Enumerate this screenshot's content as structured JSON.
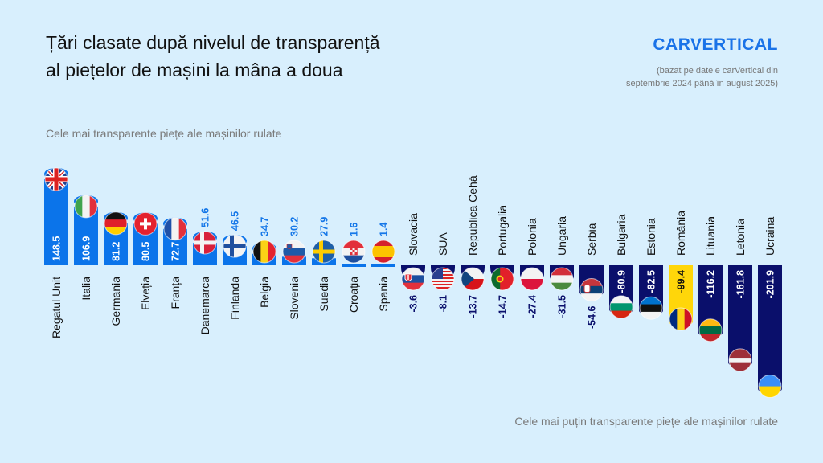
{
  "header": {
    "title_line1": "Țări clasate după nivelul de transparență",
    "title_line2": "al piețelor de mașini la mâna a doua",
    "logo": "carVertical",
    "note_line1": "(bazat pe datele carVertical din",
    "note_line2": "septembrie 2024 până în august 2025)"
  },
  "chart_data": {
    "type": "bar",
    "title": "Țări clasate după nivelul de transparență al piețelor de mașini la mâna a doua",
    "top_annotation": "Cele mai transparente piețe ale mașinilor rulate",
    "bottom_annotation": "Cele mai puțin transparente piețe ale mașinilor rulate",
    "categories": [
      "Regatul Unit",
      "Italia",
      "Germania",
      "Elveția",
      "Franța",
      "Danemarca",
      "Finlanda",
      "Belgia",
      "Slovenia",
      "Suedia",
      "Croația",
      "Spania",
      "Slovacia",
      "SUA",
      "Republica Cehă",
      "Portugalia",
      "Polonia",
      "Ungaria",
      "Serbia",
      "Bulgaria",
      "Estonia",
      "România",
      "Lituania",
      "Letonia",
      "Ucraina"
    ],
    "values": [
      148.5,
      106.9,
      81.2,
      80.5,
      72.7,
      51.6,
      46.5,
      34.7,
      30.2,
      27.9,
      1.6,
      1.4,
      -3.6,
      -8.1,
      -13.7,
      -14.7,
      -27.4,
      -31.5,
      -54.6,
      -80.9,
      -82.5,
      -99.4,
      -116.2,
      -161.8,
      -201.9
    ],
    "labels": [
      "148.5",
      "106.9",
      "81.2",
      "80.5",
      "72.7",
      "51.6",
      "46.5",
      "34.7",
      "30.2",
      "27.9",
      "1.6",
      "1.4",
      "-3.6",
      "-8.1",
      "-13.7",
      "-14.7",
      "-27.4",
      "-31.5",
      "-54.6",
      "-80.9",
      "-82.5",
      "-99.4",
      "-116.2",
      "-161.8",
      "-201.9"
    ],
    "flags": [
      "flag-uk",
      "flag-italy",
      "flag-germany",
      "flag-switzerland",
      "flag-france",
      "flag-denmark",
      "flag-finland",
      "flag-belgium",
      "flag-slovenia",
      "flag-sweden",
      "flag-croatia",
      "flag-spain",
      "flag-slovakia",
      "flag-usa",
      "flag-czechia",
      "flag-portugal",
      "flag-poland",
      "flag-hungary",
      "flag-serbia",
      "flag-bulgaria",
      "flag-estonia",
      "flag-romania",
      "flag-lithuania",
      "flag-latvia",
      "flag-ukraine"
    ],
    "highlight": "România",
    "colors": {
      "positive": "#0b74ea",
      "negative": "#0a0f6b",
      "highlight": "#ffd60a",
      "positive_label": "#1577e8",
      "negative_label": "#0a0f6b"
    },
    "grid": false,
    "legend": "none"
  }
}
